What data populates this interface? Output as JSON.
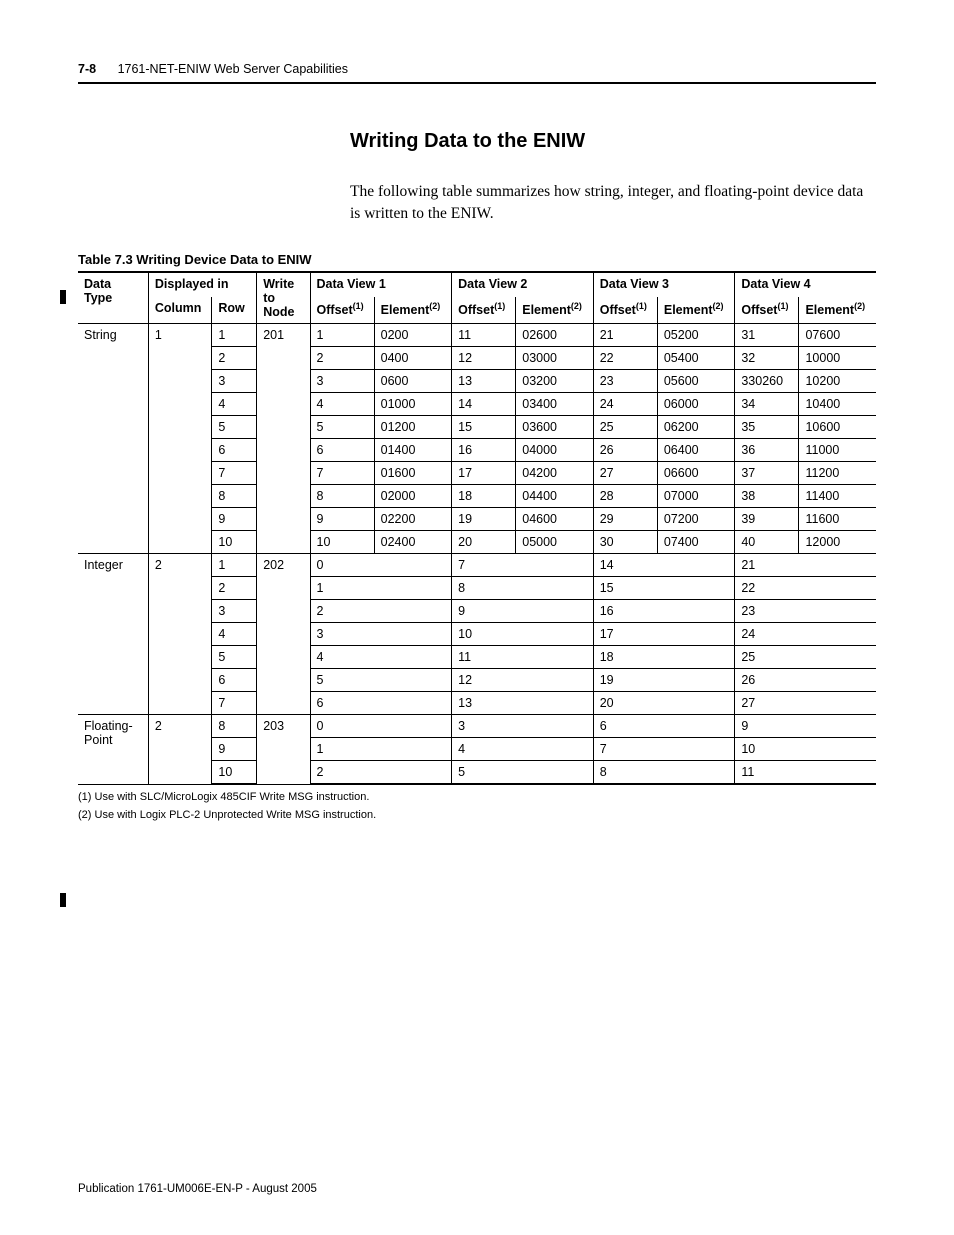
{
  "header": {
    "page_number": "7-8",
    "chapter_title": "1761-NET-ENIW Web Server Capabilities"
  },
  "section": {
    "title": "Writing Data to the ENIW",
    "body": "The following table summarizes how string, integer, and floating-point device data is written to the ENIW."
  },
  "table": {
    "caption": "Table 7.3 Writing Device Data to ENIW",
    "head": {
      "data_type": "Data Type",
      "displayed_in": "Displayed in",
      "column": "Column",
      "row": "Row",
      "write_to_node": "Write to Node",
      "dv1": "Data View 1",
      "dv2": "Data View 2",
      "dv3": "Data View 3",
      "dv4": "Data View 4",
      "offset": "Offset",
      "element": "Element",
      "sup1": "(1)",
      "sup2": "(2)"
    },
    "string": {
      "type": "String",
      "column": "1",
      "node": "201",
      "rows": [
        {
          "r": "1",
          "o1": "1",
          "e1": "0200",
          "o2": "11",
          "e2": "02600",
          "o3": "21",
          "e3": "05200",
          "o4": "31",
          "e4": "07600"
        },
        {
          "r": "2",
          "o1": "2",
          "e1": "0400",
          "o2": "12",
          "e2": "03000",
          "o3": "22",
          "e3": "05400",
          "o4": "32",
          "e4": "10000"
        },
        {
          "r": "3",
          "o1": "3",
          "e1": "0600",
          "o2": "13",
          "e2": "03200",
          "o3": "23",
          "e3": "05600",
          "o4": "330260",
          "e4": "10200"
        },
        {
          "r": "4",
          "o1": "4",
          "e1": "01000",
          "o2": "14",
          "e2": "03400",
          "o3": "24",
          "e3": "06000",
          "o4": "34",
          "e4": "10400"
        },
        {
          "r": "5",
          "o1": "5",
          "e1": "01200",
          "o2": "15",
          "e2": "03600",
          "o3": "25",
          "e3": "06200",
          "o4": "35",
          "e4": "10600"
        },
        {
          "r": "6",
          "o1": "6",
          "e1": "01400",
          "o2": "16",
          "e2": "04000",
          "o3": "26",
          "e3": "06400",
          "o4": "36",
          "e4": "11000"
        },
        {
          "r": "7",
          "o1": "7",
          "e1": "01600",
          "o2": "17",
          "e2": "04200",
          "o3": "27",
          "e3": "06600",
          "o4": "37",
          "e4": "11200"
        },
        {
          "r": "8",
          "o1": "8",
          "e1": "02000",
          "o2": "18",
          "e2": "04400",
          "o3": "28",
          "e3": "07000",
          "o4": "38",
          "e4": "11400"
        },
        {
          "r": "9",
          "o1": "9",
          "e1": "02200",
          "o2": "19",
          "e2": "04600",
          "o3": "29",
          "e3": "07200",
          "o4": "39",
          "e4": "11600"
        },
        {
          "r": "10",
          "o1": "10",
          "e1": "02400",
          "o2": "20",
          "e2": "05000",
          "o3": "30",
          "e3": "07400",
          "o4": "40",
          "e4": "12000"
        }
      ]
    },
    "integer": {
      "type": "Integer",
      "column": "2",
      "node": "202",
      "rows": [
        {
          "r": "1",
          "dv1": "0",
          "dv2": "7",
          "dv3": "14",
          "dv4": "21"
        },
        {
          "r": "2",
          "dv1": "1",
          "dv2": "8",
          "dv3": "15",
          "dv4": "22"
        },
        {
          "r": "3",
          "dv1": "2",
          "dv2": "9",
          "dv3": "16",
          "dv4": "23"
        },
        {
          "r": "4",
          "dv1": "3",
          "dv2": "10",
          "dv3": "17",
          "dv4": "24"
        },
        {
          "r": "5",
          "dv1": "4",
          "dv2": "11",
          "dv3": "18",
          "dv4": "25"
        },
        {
          "r": "6",
          "dv1": "5",
          "dv2": "12",
          "dv3": "19",
          "dv4": "26"
        },
        {
          "r": "7",
          "dv1": "6",
          "dv2": "13",
          "dv3": "20",
          "dv4": "27"
        }
      ]
    },
    "float": {
      "type": "Floating-Point",
      "column": "2",
      "node": "203",
      "rows": [
        {
          "r": "8",
          "dv1": "0",
          "dv2": "3",
          "dv3": "6",
          "dv4": "9"
        },
        {
          "r": "9",
          "dv1": "1",
          "dv2": "4",
          "dv3": "7",
          "dv4": "10"
        },
        {
          "r": "10",
          "dv1": "2",
          "dv2": "5",
          "dv3": "8",
          "dv4": "11"
        }
      ]
    }
  },
  "footnotes": {
    "f1": "(1)   Use with SLC/MicroLogix 485CIF Write MSG instruction.",
    "f2": "(2)   Use with Logix PLC-2 Unprotected Write MSG instruction."
  },
  "footer": "Publication 1761-UM006E-EN-P - August 2005"
}
